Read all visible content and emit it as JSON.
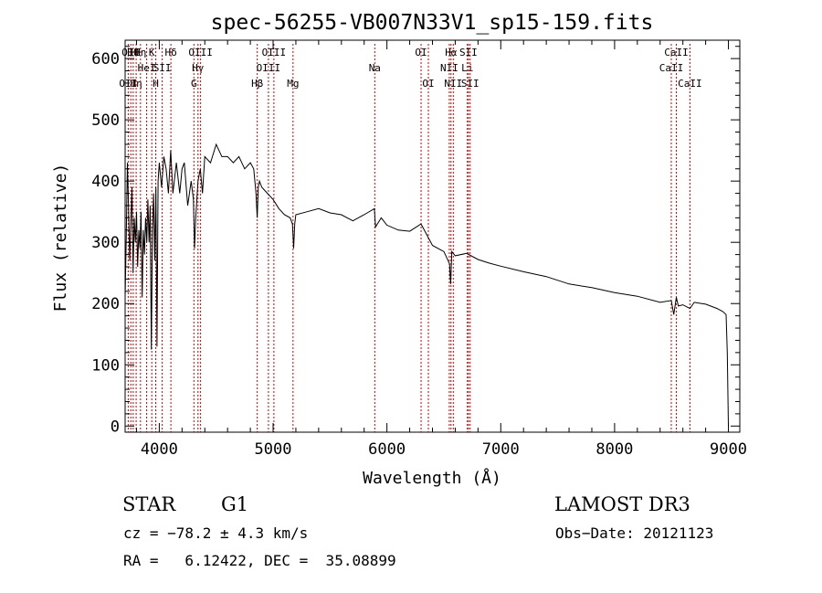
{
  "chart_data": {
    "type": "line",
    "title": "spec-56255-VB007N33V1_sp15-159.fits",
    "xlabel": "Wavelength (Å)",
    "ylabel": "Flux (relative)",
    "xlim": [
      3700,
      9100
    ],
    "ylim": [
      -10,
      630
    ],
    "xticks": [
      4000,
      5000,
      6000,
      7000,
      8000,
      9000
    ],
    "yticks": [
      0,
      100,
      200,
      300,
      400,
      500,
      600
    ],
    "series": [
      {
        "name": "spectrum",
        "x": [
          3700,
          3710,
          3720,
          3730,
          3740,
          3750,
          3760,
          3770,
          3780,
          3790,
          3800,
          3810,
          3820,
          3830,
          3840,
          3850,
          3860,
          3870,
          3880,
          3890,
          3900,
          3910,
          3920,
          3930,
          3940,
          3950,
          3960,
          3970,
          3980,
          3990,
          4000,
          4020,
          4040,
          4060,
          4080,
          4100,
          4120,
          4150,
          4180,
          4200,
          4220,
          4250,
          4280,
          4300,
          4310,
          4320,
          4340,
          4360,
          4380,
          4400,
          4450,
          4500,
          4550,
          4600,
          4650,
          4700,
          4750,
          4800,
          4830,
          4850,
          4860,
          4870,
          4880,
          4900,
          4950,
          5000,
          5050,
          5100,
          5150,
          5170,
          5180,
          5190,
          5200,
          5300,
          5400,
          5500,
          5600,
          5700,
          5800,
          5890,
          5900,
          5950,
          6000,
          6100,
          6200,
          6300,
          6400,
          6500,
          6550,
          6560,
          6570,
          6600,
          6700,
          6800,
          6900,
          7000,
          7200,
          7400,
          7600,
          7800,
          8000,
          8200,
          8400,
          8498,
          8520,
          8542,
          8560,
          8600,
          8662,
          8700,
          8800,
          8900,
          8950,
          8980,
          8990,
          9000
        ],
        "y": [
          210,
          305,
          430,
          360,
          270,
          330,
          390,
          250,
          340,
          300,
          350,
          260,
          320,
          290,
          350,
          210,
          320,
          280,
          340,
          300,
          370,
          300,
          360,
          125,
          320,
          380,
          270,
          390,
          130,
          400,
          430,
          390,
          440,
          420,
          380,
          450,
          380,
          430,
          380,
          420,
          430,
          360,
          400,
          370,
          290,
          340,
          400,
          420,
          380,
          440,
          430,
          460,
          440,
          440,
          430,
          440,
          420,
          430,
          420,
          380,
          340,
          390,
          400,
          390,
          380,
          370,
          355,
          345,
          340,
          330,
          290,
          330,
          345,
          350,
          355,
          348,
          345,
          335,
          345,
          355,
          325,
          340,
          328,
          320,
          318,
          330,
          295,
          285,
          265,
          232,
          285,
          278,
          282,
          272,
          266,
          261,
          252,
          244,
          232,
          226,
          218,
          212,
          202,
          205,
          182,
          210,
          196,
          198,
          192,
          202,
          199,
          192,
          187,
          182,
          120,
          0
        ]
      }
    ],
    "line_markers": [
      {
        "x": 3727,
        "label": "OII",
        "row": 2
      },
      {
        "x": 3750,
        "label": "OII",
        "row": 0
      },
      {
        "x": 3771,
        "label": "Hθ",
        "row": 0
      },
      {
        "x": 3797,
        "label": "Hη",
        "row": 2
      },
      {
        "x": 3835,
        "label": "Hη",
        "row": 0
      },
      {
        "x": 3889,
        "label": "HeI",
        "row": 1
      },
      {
        "x": 3934,
        "label": "K",
        "row": 0
      },
      {
        "x": 3969,
        "label": "H",
        "row": 2
      },
      {
        "x": 4026,
        "label": "SII",
        "row": 1
      },
      {
        "x": 4102,
        "label": "Hδ",
        "row": 0
      },
      {
        "x": 4304,
        "label": "G",
        "row": 2
      },
      {
        "x": 4340,
        "label": "Hγ",
        "row": 1
      },
      {
        "x": 4363,
        "label": "OIII",
        "row": 0
      },
      {
        "x": 4861,
        "label": "Hβ",
        "row": 2
      },
      {
        "x": 4959,
        "label": "OIII",
        "row": 1
      },
      {
        "x": 5007,
        "label": "OIII",
        "row": 0
      },
      {
        "x": 5175,
        "label": "Mg",
        "row": 2
      },
      {
        "x": 5893,
        "label": "Na",
        "row": 1
      },
      {
        "x": 6300,
        "label": "OI",
        "row": 0
      },
      {
        "x": 6364,
        "label": "OI",
        "row": 2
      },
      {
        "x": 6548,
        "label": "NII",
        "row": 1
      },
      {
        "x": 6563,
        "label": "Hα",
        "row": 0
      },
      {
        "x": 6583,
        "label": "NII",
        "row": 2
      },
      {
        "x": 6707,
        "label": "Li",
        "row": 1
      },
      {
        "x": 6716,
        "label": "SII",
        "row": 0
      },
      {
        "x": 6731,
        "label": "SII",
        "row": 2
      },
      {
        "x": 8498,
        "label": "CaII",
        "row": 1
      },
      {
        "x": 8542,
        "label": "CaII",
        "row": 0
      },
      {
        "x": 8662,
        "label": "CaII",
        "row": 2
      }
    ]
  },
  "info": {
    "class": "STAR",
    "subclass": "G1",
    "survey": "LAMOST DR3",
    "cz": "cz = −78.2 ± 4.3 km/s",
    "obs_date": "Obs−Date: 20121123",
    "radec": "RA =   6.12422, DEC =  35.08899"
  },
  "colors": {
    "spectrum": "#000000",
    "marker": "#cc0000"
  }
}
